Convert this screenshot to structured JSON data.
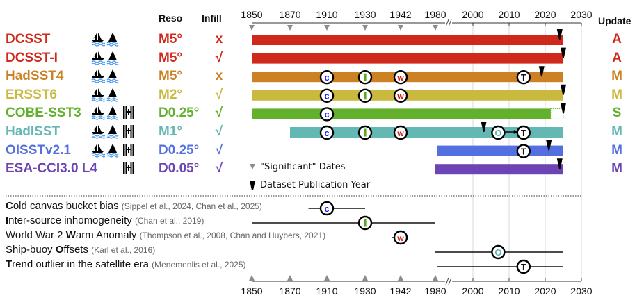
{
  "headers": {
    "reso": "Reso",
    "infill": "Infill",
    "update": "Update"
  },
  "axis": {
    "tick_labels": [
      "1850",
      "1870",
      "1910",
      "1930",
      "1942",
      "1980",
      "2000",
      "2010",
      "2020",
      "2030"
    ],
    "significant_dates": [
      1850,
      1870,
      1910,
      1930,
      1942,
      1980
    ],
    "break_between": [
      1980,
      2000
    ],
    "post_break_range": [
      2000,
      2030
    ]
  },
  "legend": {
    "significant": "\"Significant\" Dates",
    "publication": "Dataset Publication Year"
  },
  "markers": {
    "C": {
      "letter": "C",
      "color": "#1a1aff"
    },
    "I": {
      "letter": "I",
      "color": "#5aa820"
    },
    "W": {
      "letter": "W",
      "color": "#d02010"
    },
    "O": {
      "letter": "O",
      "color": "#5fb3ae"
    },
    "T": {
      "letter": "T",
      "color": "#111111"
    }
  },
  "datasets": [
    {
      "name": "DCSST",
      "color": "#d0281a",
      "sources": [
        "ship",
        "buoy"
      ],
      "reso": "M5°",
      "infill": "x",
      "update": "A",
      "start": 1850,
      "end": 2025,
      "solid_end": 2025,
      "publication": 2024,
      "markers": []
    },
    {
      "name": "DCSST-I",
      "color": "#d0281a",
      "sources": [
        "ship",
        "buoy"
      ],
      "reso": "M5°",
      "infill": "√",
      "update": "A",
      "start": 1850,
      "end": 2025,
      "solid_end": 2025,
      "publication": 2025,
      "markers": []
    },
    {
      "name": "HadSST4",
      "color": "#cc8224",
      "sources": [
        "ship",
        "buoy"
      ],
      "reso": "M5°",
      "infill": "x",
      "update": "M",
      "start": 1850,
      "end": 2025,
      "solid_end": 2025,
      "publication": 2019,
      "markers": [
        {
          "type": "C",
          "year": 1910
        },
        {
          "type": "I",
          "year": 1930
        },
        {
          "type": "W",
          "year": 1942
        },
        {
          "type": "T",
          "year": 2014
        }
      ]
    },
    {
      "name": "ERSST6",
      "color": "#c9b93e",
      "sources": [
        "ship",
        "buoy"
      ],
      "reso": "M2°",
      "infill": "√",
      "update": "M",
      "start": 1850,
      "end": 2025,
      "solid_end": 2025,
      "publication": 2025,
      "markers": [
        {
          "type": "C",
          "year": 1910
        },
        {
          "type": "I",
          "year": 1930
        },
        {
          "type": "W",
          "year": 1942
        }
      ]
    },
    {
      "name": "COBE-SST3",
      "color": "#62b02c",
      "sources": [
        "ship",
        "buoy",
        "satellite"
      ],
      "reso": "D0.25°",
      "infill": "√",
      "update": "S",
      "start": 1850,
      "end": 2025,
      "solid_end": 2021.5,
      "publication": 2025,
      "markers": [
        {
          "type": "C",
          "year": 1910
        }
      ]
    },
    {
      "name": "HadISST",
      "color": "#64b8b4",
      "sources": [
        "ship",
        "buoy",
        "satellite"
      ],
      "reso": "M1°",
      "infill": "√",
      "update": "M",
      "start": 1870,
      "end": 2025,
      "solid_end": 2025,
      "publication": 2003,
      "markers": [
        {
          "type": "C",
          "year": 1910
        },
        {
          "type": "I",
          "year": 1930
        },
        {
          "type": "W",
          "year": 1942
        },
        {
          "type": "O",
          "year": 2007,
          "arrow_to": "T"
        },
        {
          "type": "T",
          "year": 2014
        }
      ]
    },
    {
      "name": "OISSTv2.1",
      "color": "#5470e0",
      "sources": [
        "ship",
        "buoy",
        "satellite"
      ],
      "reso": "D0.25°",
      "infill": "√",
      "update": "M",
      "start": 1981,
      "end": 2025,
      "solid_end": 2025,
      "publication": 2021,
      "markers": [
        {
          "type": "T",
          "year": 2014
        }
      ]
    },
    {
      "name": "ESA-CCI3.0 L4",
      "color": "#6c44b4",
      "sources": [
        "satellite"
      ],
      "reso": "D0.05°",
      "infill": "√",
      "update": "M",
      "start": 1980,
      "end": 2025,
      "solid_end": 2025,
      "publication": 2024,
      "markers": []
    }
  ],
  "issues": [
    {
      "bold": "C",
      "rest": "old canvas bucket bias",
      "prefix": "",
      "ref": "(Sippel et al., 2024, Chan et al., 2025)",
      "marker": "C",
      "from": 1890,
      "to": 1930,
      "at": 1910
    },
    {
      "bold": "I",
      "rest": "nter-source inhomogeneity",
      "prefix": "",
      "ref": "(Chan et al., 2019)",
      "marker": "I",
      "from": 1850,
      "to": 1980,
      "at": 1930
    },
    {
      "bold": "W",
      "rest": "arm Anomaly",
      "prefix": "World War 2 ",
      "ref": "(Thompson et al., 2008, Chan and Huybers, 2021)",
      "marker": "W",
      "from": 1939,
      "to": 1946,
      "at": 1942
    },
    {
      "bold": "O",
      "rest": "ffsets",
      "prefix": "Ship-buoy ",
      "ref": "(Karl et al., 2016)",
      "marker": "O",
      "from": 1980,
      "to": 2025,
      "at": 2007
    },
    {
      "bold": "T",
      "rest": "rend outlier in the satellite era",
      "prefix": "",
      "ref": "(Menemenlis et al., 2025)",
      "marker": "T",
      "from": 1981,
      "to": 2025,
      "at": 2014
    }
  ]
}
